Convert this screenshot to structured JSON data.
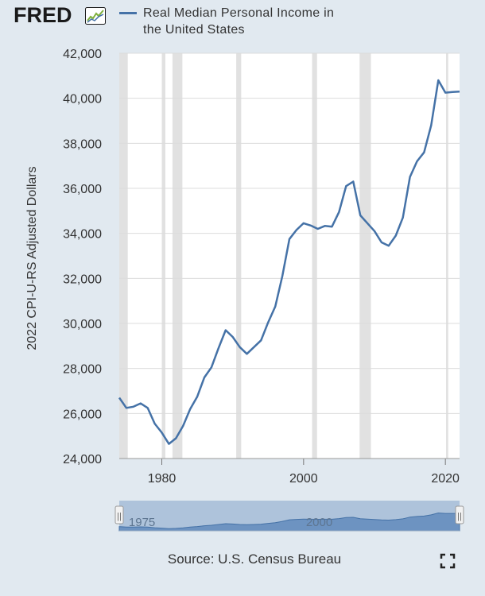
{
  "header": {
    "logo_text": "FRED",
    "legend_label": "Real Median Personal Income in the United States",
    "series_color": "#4572a7"
  },
  "chart_data": {
    "type": "line",
    "title": "Real Median Personal Income in the United States",
    "ylabel": "2022 CPI-U-RS Adjusted Dollars",
    "xlabel": "",
    "xlim": [
      1974,
      2022
    ],
    "ylim": [
      24000,
      42000
    ],
    "y_ticks": [
      24000,
      26000,
      28000,
      30000,
      32000,
      34000,
      36000,
      38000,
      40000,
      42000
    ],
    "y_tick_labels": [
      "24,000",
      "26,000",
      "28,000",
      "30,000",
      "32,000",
      "34,000",
      "36,000",
      "38,000",
      "40,000",
      "42,000"
    ],
    "x_ticks": [
      1980,
      2000,
      2020
    ],
    "x_tick_labels": [
      "1980",
      "2000",
      "2020"
    ],
    "recessions": [
      [
        1973.9,
        1975.2
      ],
      [
        1980.0,
        1980.5
      ],
      [
        1981.5,
        1982.9
      ],
      [
        1990.5,
        1991.2
      ],
      [
        2001.2,
        2001.9
      ],
      [
        2007.9,
        2009.5
      ],
      [
        2020.1,
        2020.4
      ]
    ],
    "series": [
      {
        "name": "Real Median Personal Income in the United States",
        "x": [
          1974,
          1975,
          1976,
          1977,
          1978,
          1979,
          1980,
          1981,
          1982,
          1983,
          1984,
          1985,
          1986,
          1987,
          1988,
          1989,
          1990,
          1991,
          1992,
          1993,
          1994,
          1995,
          1996,
          1997,
          1998,
          1999,
          2000,
          2001,
          2002,
          2003,
          2004,
          2005,
          2006,
          2007,
          2008,
          2009,
          2010,
          2011,
          2012,
          2013,
          2014,
          2015,
          2016,
          2017,
          2018,
          2019,
          2020,
          2021,
          2022
        ],
        "values": [
          26700,
          26250,
          26300,
          26450,
          26250,
          25550,
          25150,
          24650,
          24900,
          25450,
          26200,
          26750,
          27600,
          28050,
          28900,
          29700,
          29400,
          28950,
          28650,
          28950,
          29250,
          30050,
          30750,
          32100,
          33750,
          34150,
          34450,
          34350,
          34200,
          34330,
          34300,
          34950,
          36100,
          36300,
          34800,
          34450,
          34100,
          33600,
          33450,
          33900,
          34700,
          36500,
          37200,
          37600,
          38800,
          40800,
          40250,
          40280,
          40300
        ]
      }
    ]
  },
  "navigator": {
    "tick_labels": [
      "1975",
      "2000"
    ],
    "handle_left_glyph": "||",
    "handle_right_glyph": "||"
  },
  "footer": {
    "source_text": "Source: U.S. Census Bureau"
  }
}
